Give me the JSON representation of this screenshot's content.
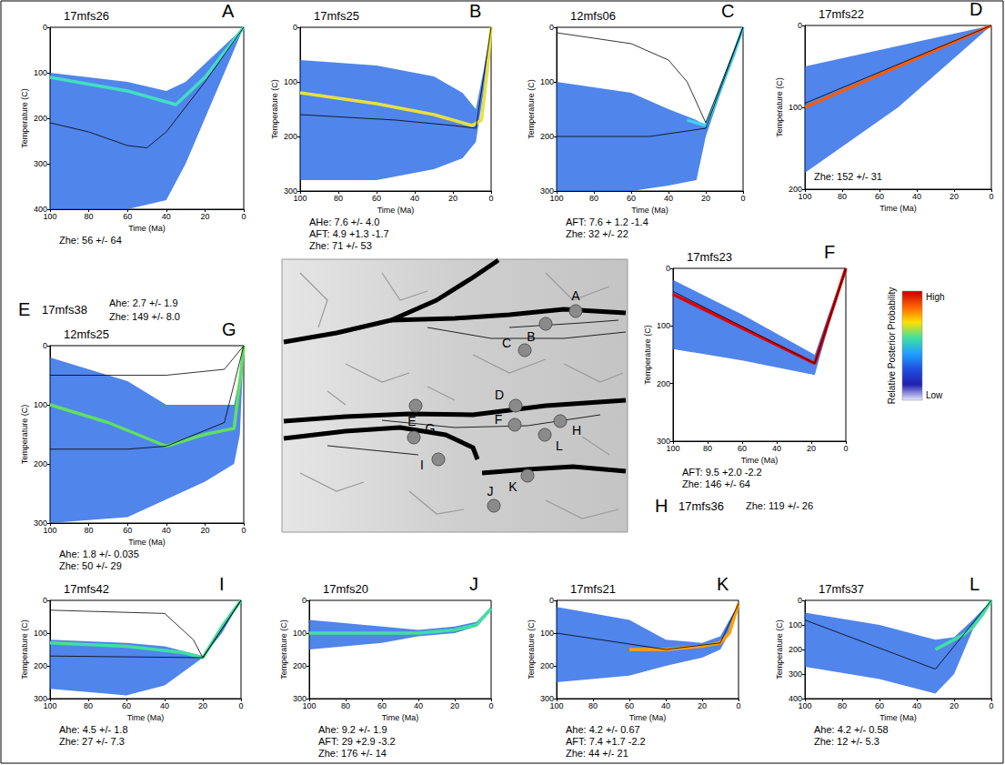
{
  "chart_data": [
    {
      "type": "line",
      "letter": "A",
      "title": "17mfs26",
      "x_label": "Time (Ma)",
      "y_label": "Temperature (C)",
      "xlim": [
        100,
        0
      ],
      "xticks": [
        100,
        80,
        60,
        40,
        20,
        0
      ],
      "ylim": [
        0,
        400
      ],
      "yticks": [
        0,
        100,
        200,
        300,
        400
      ],
      "annotations": [
        "Zhe: 56 +/- 64"
      ],
      "series": [
        {
          "type": "band",
          "color": "#1f63e6",
          "x": [
            100,
            80,
            60,
            40,
            30,
            20,
            10,
            0
          ],
          "low": [
            100,
            110,
            120,
            140,
            120,
            80,
            40,
            0
          ],
          "high": [
            400,
            400,
            400,
            380,
            300,
            200,
            100,
            0
          ]
        },
        {
          "type": "line",
          "color": "#3fe0c0",
          "line_style": "thick",
          "x": [
            100,
            60,
            35,
            20,
            10,
            0
          ],
          "values": [
            110,
            140,
            170,
            110,
            55,
            0
          ]
        },
        {
          "type": "line",
          "color": "#000000",
          "line_style": "thin",
          "x": [
            100,
            80,
            60,
            50,
            40,
            20,
            0
          ],
          "values": [
            210,
            230,
            260,
            265,
            230,
            120,
            0
          ]
        }
      ]
    },
    {
      "type": "line",
      "letter": "B",
      "title": "17mfs25",
      "x_label": "Time (Ma)",
      "y_label": "Temperature (C)",
      "xlim": [
        100,
        0
      ],
      "xticks": [
        100,
        80,
        60,
        40,
        20,
        0
      ],
      "ylim": [
        0,
        300
      ],
      "yticks": [
        0,
        100,
        200,
        300
      ],
      "annotations": [
        "AHe: 7.6 +/- 4.0",
        "AFT: 4.9 +1.3 -1.7",
        "Zhe: 71 +/- 53"
      ],
      "series": [
        {
          "type": "band",
          "color": "#1f63e6",
          "x": [
            100,
            60,
            30,
            15,
            8,
            4,
            0
          ],
          "low": [
            60,
            70,
            90,
            120,
            150,
            80,
            0
          ],
          "high": [
            280,
            280,
            260,
            240,
            210,
            120,
            0
          ]
        },
        {
          "type": "line",
          "color": "#e8e040",
          "line_style": "thick",
          "x": [
            100,
            60,
            30,
            10,
            5,
            2,
            0
          ],
          "values": [
            120,
            140,
            160,
            180,
            170,
            80,
            0
          ]
        },
        {
          "type": "line",
          "color": "#000000",
          "line_style": "thin",
          "x": [
            100,
            50,
            20,
            8,
            0
          ],
          "values": [
            160,
            170,
            180,
            185,
            0
          ]
        }
      ]
    },
    {
      "type": "line",
      "letter": "C",
      "title": "12mfs06",
      "x_label": "Time (Ma)",
      "y_label": "Temperature (C)",
      "xlim": [
        100,
        0
      ],
      "xticks": [
        100,
        80,
        60,
        40,
        20,
        0
      ],
      "ylim": [
        0,
        300
      ],
      "yticks": [
        0,
        100,
        200,
        300
      ],
      "annotations": [
        "AFT: 7.6 + 1.2 -1.4",
        "Zhe: 32 +/- 22"
      ],
      "series": [
        {
          "type": "band",
          "color": "#1f63e6",
          "x": [
            100,
            60,
            40,
            25,
            20,
            10,
            0
          ],
          "low": [
            100,
            120,
            150,
            170,
            180,
            90,
            0
          ],
          "high": [
            300,
            300,
            290,
            280,
            200,
            100,
            0
          ]
        },
        {
          "type": "line",
          "color": "#40d0f0",
          "line_style": "thick",
          "x": [
            30,
            20,
            15,
            10,
            5,
            0
          ],
          "values": [
            170,
            180,
            140,
            95,
            50,
            0
          ]
        },
        {
          "type": "line",
          "color": "#000000",
          "line_style": "thin",
          "x": [
            100,
            60,
            40,
            30,
            20,
            0
          ],
          "values": [
            10,
            30,
            60,
            100,
            175,
            0
          ]
        },
        {
          "type": "line",
          "color": "#000000",
          "line_style": "thin",
          "x": [
            100,
            50,
            20,
            0
          ],
          "values": [
            200,
            200,
            185,
            0
          ]
        }
      ]
    },
    {
      "type": "line",
      "letter": "D",
      "title": "17mfs22",
      "x_label": "Time (Ma)",
      "y_label": "Temperature (C)",
      "xlim": [
        100,
        0
      ],
      "xticks": [
        100,
        80,
        60,
        40,
        20,
        0
      ],
      "ylim": [
        0,
        200
      ],
      "yticks": [
        0,
        100,
        200
      ],
      "annotations": [
        "Zhe: 152 +/- 31"
      ],
      "series": [
        {
          "type": "band",
          "color": "#1f63e6",
          "x": [
            100,
            50,
            0
          ],
          "low": [
            50,
            25,
            0
          ],
          "high": [
            180,
            100,
            0
          ]
        },
        {
          "type": "line",
          "color": "#ff5a00",
          "line_style": "thick",
          "x": [
            100,
            50,
            20,
            0
          ],
          "values": [
            100,
            50,
            20,
            0
          ]
        },
        {
          "type": "line",
          "color": "#000000",
          "line_style": "thin",
          "x": [
            100,
            0
          ],
          "values": [
            95,
            0
          ]
        }
      ]
    },
    {
      "type": "line",
      "letter": "F",
      "title": "17mfs23",
      "x_label": "Time (Ma)",
      "y_label": "Temperature (C)",
      "xlim": [
        100,
        0
      ],
      "xticks": [
        100,
        80,
        60,
        40,
        20,
        0
      ],
      "ylim": [
        0,
        300
      ],
      "yticks": [
        0,
        100,
        200,
        300
      ],
      "annotations": [
        "AFT: 9.5 +2.0 -2.2",
        "Zhe: 146 +/- 64"
      ],
      "series": [
        {
          "type": "band",
          "color": "#1f63e6",
          "x": [
            100,
            60,
            18,
            10,
            0
          ],
          "low": [
            20,
            80,
            150,
            80,
            0
          ],
          "high": [
            140,
            160,
            185,
            100,
            0
          ]
        },
        {
          "type": "line",
          "color": "#e00000",
          "line_style": "thick",
          "x": [
            100,
            18,
            0
          ],
          "values": [
            45,
            165,
            0
          ]
        },
        {
          "type": "line",
          "color": "#000000",
          "line_style": "thin",
          "x": [
            100,
            18,
            0
          ],
          "values": [
            40,
            165,
            0
          ]
        }
      ]
    },
    {
      "type": "line",
      "letter": "G",
      "title": "12mfs25",
      "x_label": "Time (Ma)",
      "y_label": "Temperature (C)",
      "xlim": [
        100,
        0
      ],
      "xticks": [
        100,
        80,
        60,
        40,
        20,
        0
      ],
      "ylim": [
        0,
        300
      ],
      "yticks": [
        0,
        100,
        200,
        300
      ],
      "annotations": [
        "Ahe: 1.8 +/- 0.035",
        "Zhe: 50 +/- 29"
      ],
      "series": [
        {
          "type": "band",
          "color": "#1f63e6",
          "x": [
            100,
            60,
            40,
            20,
            5,
            2,
            0
          ],
          "low": [
            20,
            60,
            100,
            100,
            100,
            50,
            0
          ],
          "high": [
            300,
            290,
            260,
            230,
            200,
            150,
            0
          ]
        },
        {
          "type": "line",
          "color": "#60e060",
          "line_style": "thick",
          "x": [
            100,
            70,
            40,
            20,
            5,
            2,
            0
          ],
          "values": [
            100,
            130,
            170,
            150,
            140,
            60,
            0
          ]
        },
        {
          "type": "line",
          "color": "#000000",
          "line_style": "thin",
          "x": [
            100,
            40,
            10,
            0
          ],
          "values": [
            50,
            50,
            40,
            0
          ]
        },
        {
          "type": "line",
          "color": "#000000",
          "line_style": "thin",
          "x": [
            100,
            60,
            40,
            10,
            0
          ],
          "values": [
            175,
            175,
            170,
            130,
            0
          ]
        }
      ]
    },
    {
      "type": "line",
      "letter": "I",
      "title": "17mfs42",
      "x_label": "Time (Ma)",
      "y_label": "Temperature (C)",
      "xlim": [
        100,
        0
      ],
      "xticks": [
        100,
        80,
        60,
        40,
        20,
        0
      ],
      "ylim": [
        0,
        300
      ],
      "yticks": [
        0,
        100,
        200,
        300
      ],
      "annotations": [
        "Ahe: 4.5 +/- 1.8",
        "Zhe: 27 +/- 7.3"
      ],
      "series": [
        {
          "type": "band",
          "color": "#1f63e6",
          "x": [
            100,
            60,
            40,
            20,
            10,
            0
          ],
          "low": [
            120,
            130,
            140,
            170,
            80,
            0
          ],
          "high": [
            270,
            290,
            260,
            175,
            100,
            0
          ]
        },
        {
          "type": "line",
          "color": "#40e0a0",
          "line_style": "thick",
          "x": [
            100,
            60,
            30,
            20,
            10,
            0
          ],
          "values": [
            130,
            140,
            160,
            175,
            80,
            0
          ]
        },
        {
          "type": "line",
          "color": "#000000",
          "line_style": "thin",
          "x": [
            100,
            40,
            25,
            20,
            0
          ],
          "values": [
            30,
            40,
            120,
            175,
            0
          ]
        },
        {
          "type": "line",
          "color": "#000000",
          "line_style": "thin",
          "x": [
            100,
            20,
            0
          ],
          "values": [
            170,
            175,
            0
          ]
        }
      ]
    },
    {
      "type": "line",
      "letter": "J",
      "title": "17mfs20",
      "x_label": "Time (Ma)",
      "y_label": "Temperature (C)",
      "xlim": [
        100,
        0
      ],
      "xticks": [
        100,
        80,
        60,
        40,
        20,
        0
      ],
      "ylim": [
        0,
        300
      ],
      "yticks": [
        0,
        100,
        200,
        300
      ],
      "annotations": [
        "Ahe: 9.2 +/- 1.9",
        "AFT: 29 +2.9 -3.2",
        "Zhe: 176 +/- 14"
      ],
      "series": [
        {
          "type": "band",
          "color": "#1f63e6",
          "x": [
            100,
            60,
            40,
            20,
            8,
            0
          ],
          "low": [
            60,
            80,
            90,
            80,
            65,
            20
          ],
          "high": [
            150,
            130,
            110,
            100,
            80,
            30
          ]
        },
        {
          "type": "line",
          "color": "#40e0a0",
          "line_style": "thick",
          "x": [
            100,
            60,
            40,
            20,
            8,
            0
          ],
          "values": [
            100,
            100,
            100,
            90,
            75,
            25
          ]
        }
      ]
    },
    {
      "type": "line",
      "letter": "K",
      "title": "17mfs21",
      "x_label": "Time (Ma)",
      "y_label": "Temperature (C)",
      "xlim": [
        100,
        0
      ],
      "xticks": [
        100,
        80,
        60,
        40,
        20,
        0
      ],
      "ylim": [
        0,
        300
      ],
      "yticks": [
        0,
        100,
        200,
        300
      ],
      "annotations": [
        "Ahe: 4.2 +/- 0.67",
        "AFT: 7.4 +1.7 -2.2",
        "Zhe: 44 +/- 21"
      ],
      "series": [
        {
          "type": "band",
          "color": "#1f63e6",
          "x": [
            100,
            60,
            40,
            20,
            10,
            5,
            0
          ],
          "low": [
            20,
            60,
            120,
            130,
            110,
            60,
            10
          ],
          "high": [
            250,
            230,
            200,
            175,
            150,
            100,
            10
          ]
        },
        {
          "type": "line",
          "color": "#ffa000",
          "line_style": "thick",
          "x": [
            60,
            40,
            20,
            10,
            5,
            0
          ],
          "values": [
            150,
            150,
            140,
            130,
            100,
            10
          ]
        },
        {
          "type": "line",
          "color": "#000000",
          "line_style": "thin",
          "x": [
            100,
            40,
            10,
            0
          ],
          "values": [
            100,
            150,
            130,
            10
          ]
        }
      ]
    },
    {
      "type": "line",
      "letter": "L",
      "title": "17mfs37",
      "x_label": "Time (Ma)",
      "y_label": "Temperature (C)",
      "xlim": [
        100,
        0
      ],
      "xticks": [
        100,
        80,
        60,
        40,
        20,
        0
      ],
      "ylim": [
        0,
        400
      ],
      "yticks": [
        0,
        100,
        200,
        300,
        400
      ],
      "annotations": [
        "Ahe: 4.2 +/- 0.58",
        "Zhe: 12 +/- 5.3"
      ],
      "series": [
        {
          "type": "band",
          "color": "#1f63e6",
          "x": [
            100,
            60,
            30,
            20,
            10,
            0
          ],
          "low": [
            50,
            100,
            160,
            150,
            80,
            0
          ],
          "high": [
            270,
            320,
            380,
            300,
            120,
            0
          ]
        },
        {
          "type": "line",
          "color": "#40e0a0",
          "line_style": "thick",
          "x": [
            30,
            25,
            15,
            10,
            5,
            0
          ],
          "values": [
            200,
            180,
            140,
            110,
            60,
            0
          ]
        },
        {
          "type": "line",
          "color": "#000000",
          "line_style": "thin",
          "x": [
            100,
            30,
            0
          ],
          "values": [
            80,
            280,
            0
          ]
        }
      ]
    }
  ],
  "text_panels": [
    {
      "letter": "E",
      "title": "17mfs38",
      "annotations": [
        "Ahe: 2.7 +/- 1.9",
        "Zhe: 149 +/- 8.0"
      ]
    },
    {
      "letter": "H",
      "title": "17mfs36",
      "annotations": [
        "Zhe: 119 +/- 26"
      ]
    }
  ],
  "map": {
    "samples": [
      "A",
      "B",
      "C",
      "D",
      "E",
      "F",
      "G",
      "H",
      "I",
      "J",
      "K",
      "L"
    ]
  },
  "colorbar": {
    "title": "Relative Posterior Probability",
    "high_label": "High",
    "low_label": "Low",
    "colors": [
      "#c00000",
      "#ff6000",
      "#ffe000",
      "#40e0a0",
      "#20a0ff",
      "#1f50e0",
      "#2020b0",
      "#e8e8ff"
    ]
  }
}
